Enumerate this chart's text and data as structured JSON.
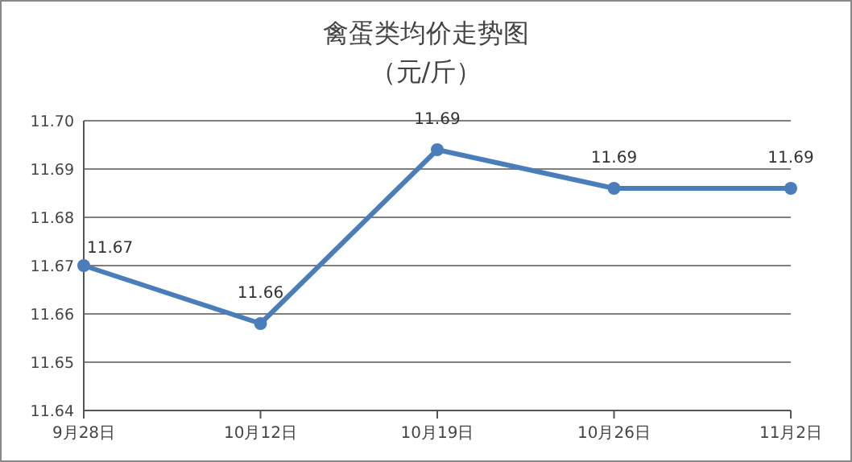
{
  "chart_data": {
    "type": "line",
    "title": "禽蛋类均价走势图",
    "subtitle": "（元/斤）",
    "categories": [
      "9月28日",
      "10月12日",
      "10月19日",
      "10月26日",
      "11月2日"
    ],
    "series": [
      {
        "color": "#4a7ebb",
        "values": [
          11.67,
          11.658,
          11.694,
          11.686,
          11.686
        ],
        "value_labels": [
          "11.67",
          "11.66",
          "11.69",
          "11.69",
          "11.69"
        ]
      }
    ],
    "ylim": [
      11.64,
      11.7
    ],
    "yticks": [
      {
        "value": 11.64,
        "label": "11.64"
      },
      {
        "value": 11.65,
        "label": "11.65"
      },
      {
        "value": 11.66,
        "label": "11.66"
      },
      {
        "value": 11.67,
        "label": "11.67"
      },
      {
        "value": 11.68,
        "label": "11.68"
      },
      {
        "value": 11.69,
        "label": "11.69"
      },
      {
        "value": 11.7,
        "label": "11.70"
      }
    ],
    "grid": "y",
    "marker": "circle",
    "line_style": "solid"
  }
}
